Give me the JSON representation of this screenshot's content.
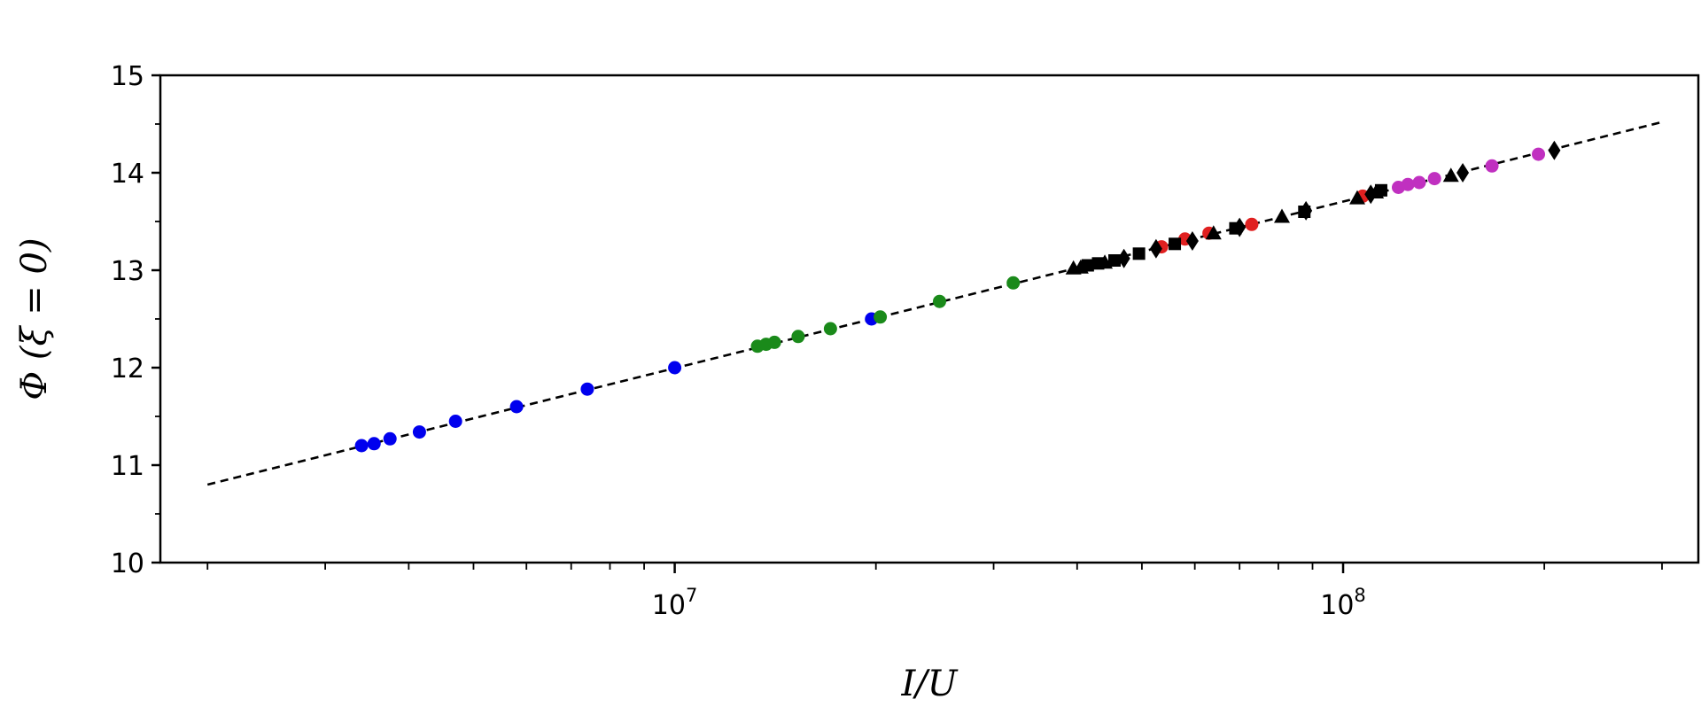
{
  "chart_data": {
    "type": "scatter",
    "xlabel": "I/U",
    "ylabel": "Φ (ξ = 0)",
    "xscale": "log",
    "xlim": [
      1700000,
      340000000
    ],
    "ylim": [
      10,
      15
    ],
    "x_ticks": [
      {
        "value": 10000000,
        "base": "10",
        "exp": "7"
      },
      {
        "value": 100000000,
        "base": "10",
        "exp": "8"
      }
    ],
    "y_ticks": [
      "10",
      "11",
      "12",
      "13",
      "14",
      "15"
    ],
    "grid": false,
    "fit_line": {
      "style": "dashed",
      "color": "#000000",
      "points": [
        [
          2000000,
          10.8
        ],
        [
          300000000,
          14.52
        ]
      ]
    },
    "series": [
      {
        "marker": "circle",
        "color": "#0000ee",
        "points": [
          [
            3400000,
            11.2
          ],
          [
            3550000,
            11.22
          ],
          [
            3750000,
            11.27
          ],
          [
            4150000,
            11.34
          ],
          [
            4700000,
            11.45
          ],
          [
            5800000,
            11.6
          ],
          [
            7400000,
            11.78
          ],
          [
            10000000,
            12.0
          ],
          [
            19700000,
            12.5
          ]
        ]
      },
      {
        "marker": "circle",
        "color": "#1a8a1a",
        "points": [
          [
            13300000,
            12.22
          ],
          [
            13700000,
            12.24
          ],
          [
            14100000,
            12.26
          ],
          [
            15300000,
            12.32
          ],
          [
            17100000,
            12.4
          ],
          [
            20300000,
            12.52
          ],
          [
            24900000,
            12.68
          ],
          [
            32100000,
            12.87
          ]
        ]
      },
      {
        "marker": "circle",
        "color": "#e02020",
        "points": [
          [
            53500000,
            13.24
          ],
          [
            58000000,
            13.32
          ],
          [
            63000000,
            13.38
          ],
          [
            73000000,
            13.47
          ],
          [
            107000000,
            13.76
          ]
        ]
      },
      {
        "marker": "circle",
        "color": "#c030c0",
        "points": [
          [
            121000000,
            13.85
          ],
          [
            125000000,
            13.88
          ],
          [
            130000000,
            13.9
          ],
          [
            137000000,
            13.94
          ],
          [
            167000000,
            14.07
          ],
          [
            196000000,
            14.19
          ]
        ]
      },
      {
        "marker": "triangle",
        "color": "#000000",
        "points": [
          [
            39500000,
            13.02
          ],
          [
            40500000,
            13.03
          ],
          [
            44000000,
            13.08
          ],
          [
            64000000,
            13.38
          ],
          [
            81000000,
            13.55
          ],
          [
            105000000,
            13.74
          ],
          [
            112000000,
            13.8
          ],
          [
            145000000,
            13.97
          ]
        ]
      },
      {
        "marker": "square",
        "color": "#000000",
        "points": [
          [
            41500000,
            13.05
          ],
          [
            43000000,
            13.07
          ],
          [
            45500000,
            13.1
          ],
          [
            49500000,
            13.17
          ],
          [
            56000000,
            13.27
          ],
          [
            69000000,
            13.43
          ],
          [
            87500000,
            13.6
          ],
          [
            114000000,
            13.82
          ]
        ]
      },
      {
        "marker": "diamond",
        "color": "#000000",
        "points": [
          [
            47000000,
            13.12
          ],
          [
            52500000,
            13.22
          ],
          [
            59500000,
            13.3
          ],
          [
            70000000,
            13.44
          ],
          [
            88000000,
            13.61
          ],
          [
            110000000,
            13.78
          ],
          [
            151000000,
            14.0
          ],
          [
            207000000,
            14.23
          ]
        ]
      }
    ]
  }
}
